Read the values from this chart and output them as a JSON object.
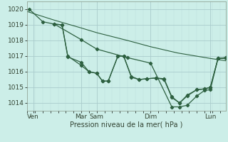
{
  "background_color": "#cceee8",
  "grid_color_major": "#aacccc",
  "grid_color_minor": "#bbdddd",
  "line_color": "#2d6040",
  "title": "Pression niveau de la mer( hPa )",
  "ylim": [
    1013.5,
    1020.5
  ],
  "yticks": [
    1014,
    1015,
    1016,
    1017,
    1018,
    1019,
    1020
  ],
  "day_labels": [
    "Ven",
    "Mar",
    "Sam",
    "Dim",
    "Lun"
  ],
  "day_x": [
    75,
    200,
    240,
    380,
    535
  ],
  "xlim": [
    60,
    575
  ],
  "series": [
    {
      "x": [
        60,
        130,
        200,
        240,
        320,
        380,
        450,
        535,
        575
      ],
      "y": [
        1019.85,
        1019.3,
        1018.8,
        1018.5,
        1018.0,
        1017.6,
        1017.2,
        1016.85,
        1016.7
      ],
      "has_markers": false
    },
    {
      "x": [
        65,
        100,
        130,
        150,
        165,
        200,
        220,
        240,
        255,
        270,
        295,
        310,
        330,
        350,
        370,
        395,
        415,
        435,
        455,
        475,
        500,
        520,
        535,
        555,
        575
      ],
      "y": [
        1020.0,
        1019.2,
        1019.05,
        1019.0,
        1017.0,
        1016.4,
        1016.0,
        1015.9,
        1015.4,
        1015.4,
        1017.0,
        1017.0,
        1015.7,
        1015.5,
        1015.55,
        1015.6,
        1015.55,
        1014.4,
        1014.0,
        1014.5,
        1014.85,
        1014.9,
        1015.0,
        1016.85,
        1016.9
      ],
      "has_markers": true
    },
    {
      "x": [
        130,
        150,
        165,
        200,
        220,
        240,
        255,
        270,
        295,
        310,
        330,
        350,
        370,
        395,
        415,
        435,
        455,
        475,
        500,
        520,
        535,
        555,
        575
      ],
      "y": [
        1019.05,
        1019.0,
        1016.95,
        1016.6,
        1016.0,
        1015.9,
        1015.4,
        1015.4,
        1017.0,
        1017.0,
        1015.65,
        1015.5,
        1015.55,
        1015.6,
        1015.5,
        1014.35,
        1014.0,
        1014.45,
        1014.85,
        1014.9,
        1015.0,
        1016.85,
        1016.9
      ],
      "has_markers": true
    },
    {
      "x": [
        130,
        200,
        240,
        320,
        380,
        435,
        455,
        475,
        500,
        520,
        535,
        555,
        575
      ],
      "y": [
        1019.05,
        1018.05,
        1017.45,
        1016.9,
        1016.55,
        1013.75,
        1013.75,
        1013.85,
        1014.45,
        1014.8,
        1014.85,
        1016.85,
        1016.85
      ],
      "has_markers": true
    }
  ]
}
